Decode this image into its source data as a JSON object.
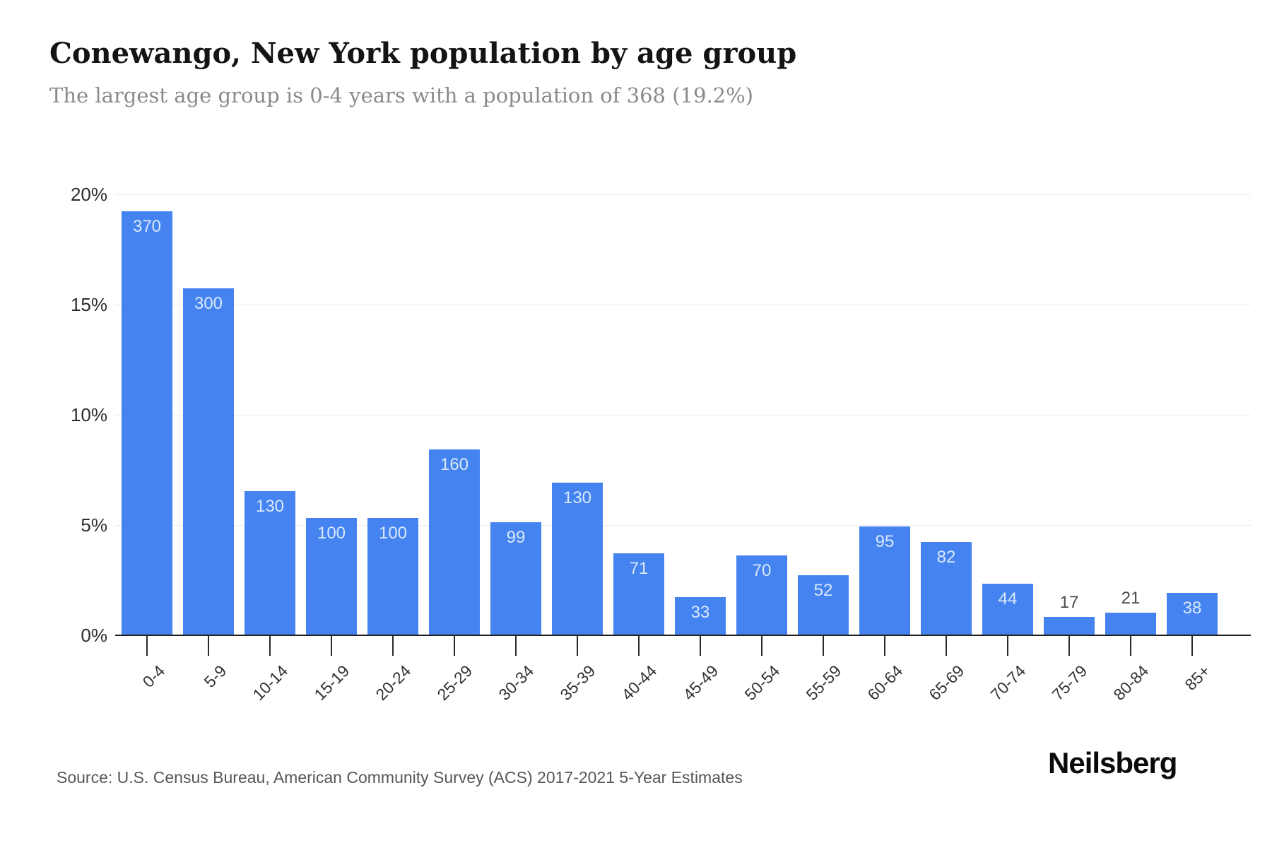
{
  "header": {
    "title": "Conewango, New York population by age group",
    "subtitle": "The largest age group is 0-4 years with a population of 368 (19.2%)"
  },
  "chart_data": {
    "type": "bar",
    "title": "Conewango, New York population by age group",
    "subtitle": "The largest age group is 0-4 years with a population of 368 (19.2%)",
    "categories": [
      "0-4",
      "5-9",
      "10-14",
      "15-19",
      "20-24",
      "25-29",
      "30-34",
      "35-39",
      "40-44",
      "45-49",
      "50-54",
      "55-59",
      "60-64",
      "65-69",
      "70-74",
      "75-79",
      "80-84",
      "85+"
    ],
    "values": [
      370,
      300,
      130,
      100,
      100,
      160,
      99,
      130,
      71,
      33,
      70,
      52,
      95,
      82,
      44,
      17,
      21,
      38
    ],
    "percent_heights": [
      19.2,
      15.7,
      6.5,
      5.3,
      5.3,
      8.4,
      5.1,
      6.9,
      3.7,
      1.7,
      3.6,
      2.7,
      4.9,
      4.2,
      2.3,
      0.8,
      1.0,
      1.9
    ],
    "value_label_position": [
      "inside",
      "inside",
      "inside",
      "inside",
      "inside",
      "inside",
      "inside",
      "inside",
      "inside",
      "inside",
      "inside",
      "inside",
      "inside",
      "inside",
      "inside",
      "above",
      "above",
      "inside"
    ],
    "xlabel": "",
    "ylabel": "",
    "ylim": [
      0,
      20
    ],
    "yticks": [
      "0%",
      "5%",
      "10%",
      "15%",
      "20%"
    ],
    "grid": "horizontal",
    "legend": "none",
    "colors": {
      "bar": "#4584f0",
      "value_label_inside": "#d9e8fb",
      "value_label_above": "#4c4c4c",
      "gridline": "#ececec",
      "axis": "#1f1f1f",
      "tick_label": "#333333"
    }
  },
  "footer": {
    "source": "Source: U.S. Census Bureau, American Community Survey (ACS) 2017-2021 5-Year Estimates",
    "logo": "Neilsberg"
  }
}
